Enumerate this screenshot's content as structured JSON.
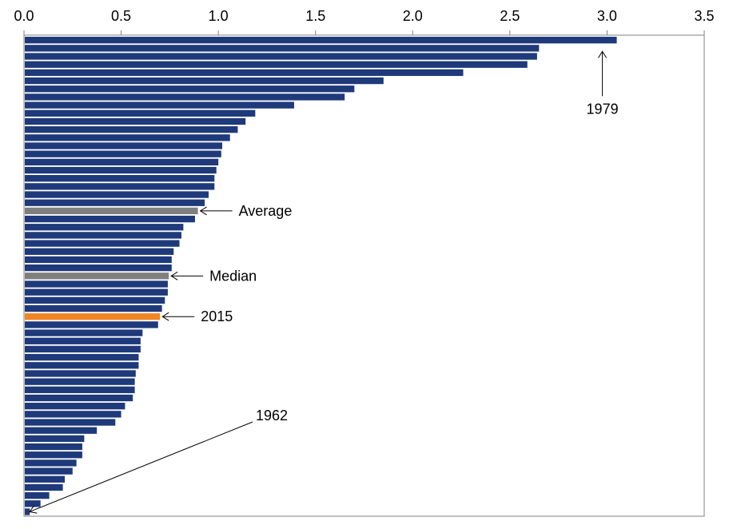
{
  "chart_data": {
    "type": "bar",
    "orientation": "horizontal",
    "title": "",
    "xlabel": "",
    "ylabel": "",
    "xlim": [
      0,
      3.5
    ],
    "xticks": [
      "0.0",
      "0.5",
      "1.0",
      "1.5",
      "2.0",
      "2.5",
      "3.0",
      "3.5"
    ],
    "xaxis_position": "top",
    "grid": false,
    "legend": "none",
    "colors": {
      "default": "#1F3A7A",
      "summary": "#7F7F7F",
      "highlight": "#F08526"
    },
    "values": [
      3.05,
      2.65,
      2.64,
      2.59,
      2.26,
      1.85,
      1.7,
      1.65,
      1.39,
      1.19,
      1.14,
      1.1,
      1.06,
      1.02,
      1.015,
      1.0,
      0.99,
      0.98,
      0.98,
      0.95,
      0.93,
      0.895,
      0.88,
      0.82,
      0.81,
      0.8,
      0.77,
      0.76,
      0.76,
      0.745,
      0.74,
      0.74,
      0.725,
      0.71,
      0.7,
      0.69,
      0.61,
      0.6,
      0.6,
      0.59,
      0.59,
      0.575,
      0.57,
      0.57,
      0.56,
      0.52,
      0.5,
      0.47,
      0.375,
      0.31,
      0.3,
      0.3,
      0.27,
      0.25,
      0.21,
      0.2,
      0.13,
      0.085,
      0.03
    ],
    "kinds": [
      "d",
      "d",
      "d",
      "d",
      "d",
      "d",
      "d",
      "d",
      "d",
      "d",
      "d",
      "d",
      "d",
      "d",
      "d",
      "d",
      "d",
      "d",
      "d",
      "d",
      "d",
      "s",
      "d",
      "d",
      "d",
      "d",
      "d",
      "d",
      "d",
      "s",
      "d",
      "d",
      "d",
      "d",
      "h",
      "d",
      "d",
      "d",
      "d",
      "d",
      "d",
      "d",
      "d",
      "d",
      "d",
      "d",
      "d",
      "d",
      "d",
      "d",
      "d",
      "d",
      "d",
      "d",
      "d",
      "d",
      "d",
      "d",
      "d"
    ],
    "annotations": [
      {
        "label": "1979",
        "bar_index": 0
      },
      {
        "label": "Average",
        "bar_index": 21
      },
      {
        "label": "Median",
        "bar_index": 29
      },
      {
        "label": "2015",
        "bar_index": 34
      },
      {
        "label": "1962",
        "bar_index": 58
      }
    ]
  }
}
